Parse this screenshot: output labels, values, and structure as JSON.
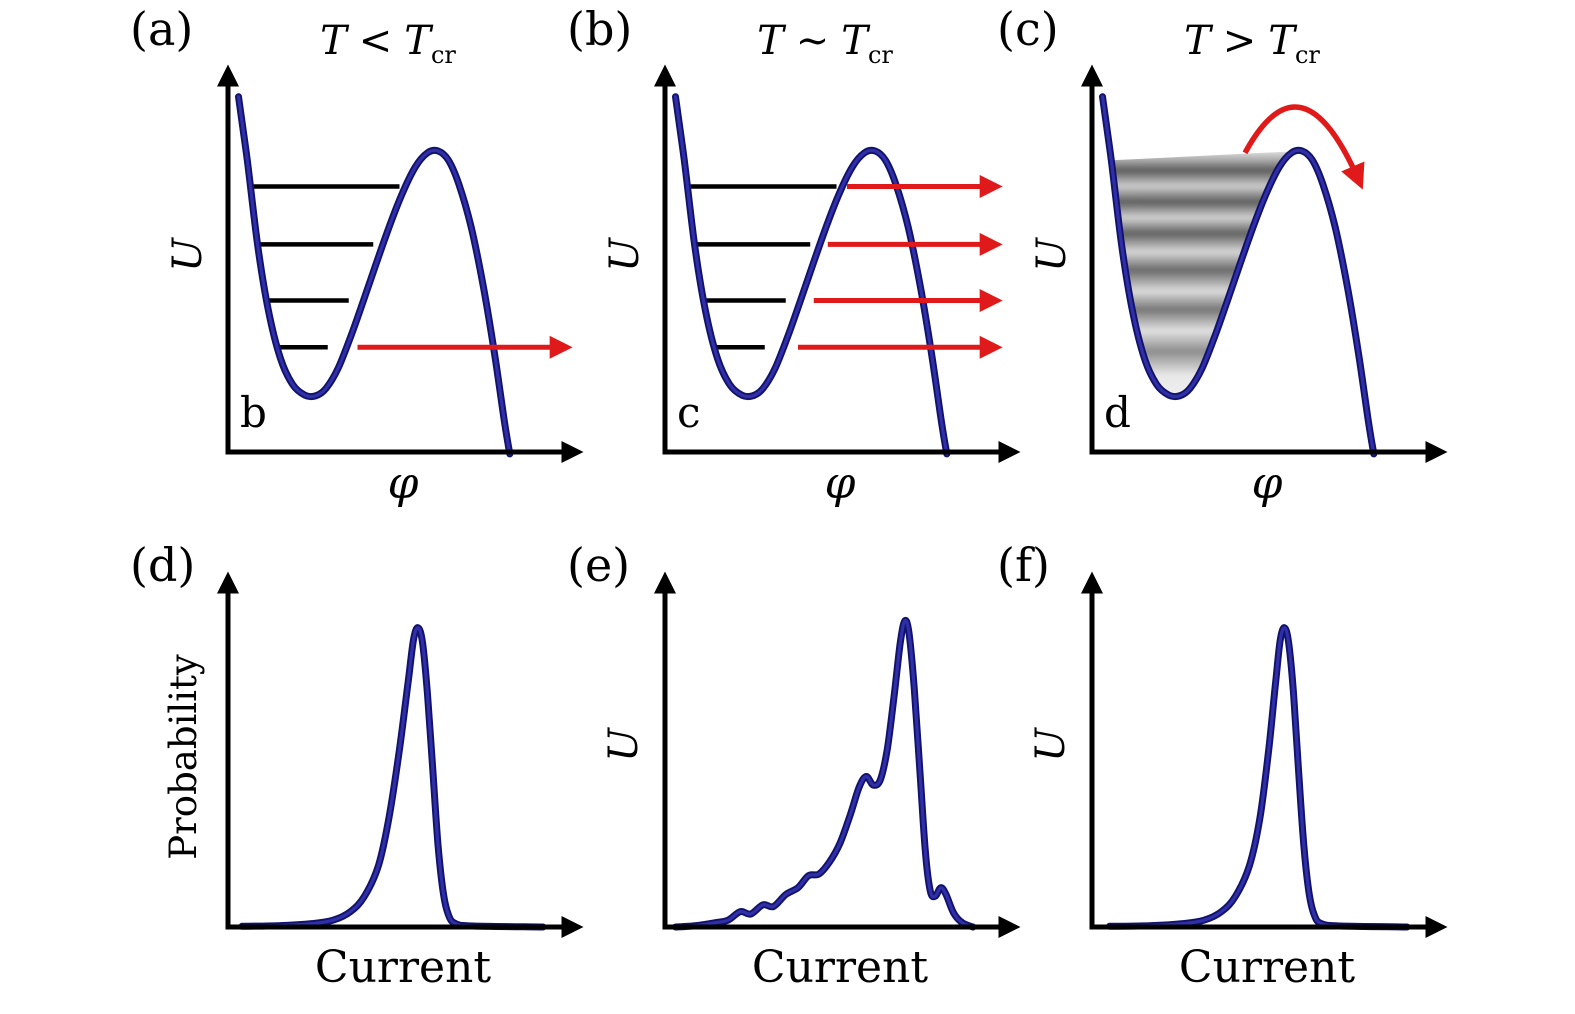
{
  "figure": {
    "background": "#ffffff",
    "axis_color": "#000000",
    "arrow_color": "#e01a1a",
    "curve_edge": "#12126b",
    "curve_core": "#2f2fa8"
  },
  "top_panels": [
    {
      "corner_label": "(a)",
      "title_lhs": "T",
      "title_op": "<",
      "title_rhs": "T",
      "title_sub": "cr",
      "ylabel": "U",
      "xlabel": "φ",
      "inner_letter": "b"
    },
    {
      "corner_label": "(b)",
      "title_lhs": "T",
      "title_op": "∼",
      "title_rhs": "T",
      "title_sub": "cr",
      "ylabel": "U",
      "xlabel": "φ",
      "inner_letter": "c"
    },
    {
      "corner_label": "(c)",
      "title_lhs": "T",
      "title_op": ">",
      "title_rhs": "T",
      "title_sub": "cr",
      "ylabel": "U",
      "xlabel": "φ",
      "inner_letter": "d"
    }
  ],
  "bottom_panels": [
    {
      "corner_label": "(d)",
      "ylabel": "Probability",
      "xlabel": "Current"
    },
    {
      "corner_label": "(e)",
      "ylabel": "U",
      "xlabel": "Current"
    },
    {
      "corner_label": "(f)",
      "ylabel": "U",
      "xlabel": "Current"
    }
  ],
  "chart_data": [
    {
      "id": "a",
      "type": "line",
      "panel": "(a)",
      "title": "T < T_cr",
      "xlabel": "φ",
      "ylabel": "U",
      "x_range": [
        0,
        1
      ],
      "y_range": [
        0,
        1
      ],
      "series": [
        {
          "name": "tilted-washboard-potential",
          "points": [
            [
              0.03,
              0.95
            ],
            [
              0.055,
              0.78
            ],
            [
              0.085,
              0.55
            ],
            [
              0.115,
              0.38
            ],
            [
              0.15,
              0.25
            ],
            [
              0.185,
              0.18
            ],
            [
              0.22,
              0.152
            ],
            [
              0.25,
              0.15
            ],
            [
              0.28,
              0.17
            ],
            [
              0.315,
              0.225
            ],
            [
              0.355,
              0.32
            ],
            [
              0.4,
              0.44
            ],
            [
              0.45,
              0.575
            ],
            [
              0.495,
              0.685
            ],
            [
              0.535,
              0.762
            ],
            [
              0.57,
              0.8
            ],
            [
              0.6,
              0.805
            ],
            [
              0.63,
              0.78
            ],
            [
              0.66,
              0.715
            ],
            [
              0.695,
              0.6
            ],
            [
              0.73,
              0.44
            ],
            [
              0.762,
              0.26
            ],
            [
              0.79,
              0.08
            ],
            [
              0.805,
              -0.005
            ]
          ]
        }
      ],
      "energy_levels": [
        {
          "y": 0.71,
          "x1": 0.065,
          "x2": 0.49
        },
        {
          "y": 0.555,
          "x1": 0.085,
          "x2": 0.415
        },
        {
          "y": 0.405,
          "x1": 0.105,
          "x2": 0.345
        },
        {
          "y": 0.28,
          "x1": 0.135,
          "x2": 0.285
        }
      ],
      "escape_arrows": [
        {
          "y": 0.28,
          "x1": 0.37,
          "x2": 0.965
        }
      ]
    },
    {
      "id": "b",
      "type": "line",
      "panel": "(b)",
      "title": "T ∼ T_cr",
      "xlabel": "φ",
      "ylabel": "U",
      "x_range": [
        0,
        1
      ],
      "y_range": [
        0,
        1
      ],
      "series": [
        {
          "name": "tilted-washboard-potential",
          "points": [
            [
              0.03,
              0.95
            ],
            [
              0.055,
              0.78
            ],
            [
              0.085,
              0.55
            ],
            [
              0.115,
              0.38
            ],
            [
              0.15,
              0.25
            ],
            [
              0.185,
              0.18
            ],
            [
              0.22,
              0.152
            ],
            [
              0.25,
              0.15
            ],
            [
              0.28,
              0.17
            ],
            [
              0.315,
              0.225
            ],
            [
              0.355,
              0.32
            ],
            [
              0.4,
              0.44
            ],
            [
              0.45,
              0.575
            ],
            [
              0.495,
              0.685
            ],
            [
              0.535,
              0.762
            ],
            [
              0.57,
              0.8
            ],
            [
              0.6,
              0.805
            ],
            [
              0.63,
              0.78
            ],
            [
              0.66,
              0.715
            ],
            [
              0.695,
              0.6
            ],
            [
              0.73,
              0.44
            ],
            [
              0.762,
              0.26
            ],
            [
              0.79,
              0.08
            ],
            [
              0.805,
              -0.005
            ]
          ]
        }
      ],
      "energy_levels": [
        {
          "y": 0.71,
          "x1": 0.065,
          "x2": 0.49
        },
        {
          "y": 0.555,
          "x1": 0.085,
          "x2": 0.415
        },
        {
          "y": 0.405,
          "x1": 0.105,
          "x2": 0.345
        },
        {
          "y": 0.28,
          "x1": 0.135,
          "x2": 0.285
        }
      ],
      "escape_arrows": [
        {
          "y": 0.71,
          "x1": 0.52,
          "x2": 0.945
        },
        {
          "y": 0.555,
          "x1": 0.465,
          "x2": 0.945
        },
        {
          "y": 0.405,
          "x1": 0.425,
          "x2": 0.945
        },
        {
          "y": 0.28,
          "x1": 0.38,
          "x2": 0.945
        }
      ]
    },
    {
      "id": "c",
      "type": "line",
      "panel": "(c)",
      "title": "T > T_cr",
      "xlabel": "φ",
      "ylabel": "U",
      "x_range": [
        0,
        1
      ],
      "y_range": [
        0,
        1
      ],
      "series": [
        {
          "name": "tilted-washboard-potential",
          "points": [
            [
              0.03,
              0.95
            ],
            [
              0.055,
              0.78
            ],
            [
              0.085,
              0.55
            ],
            [
              0.115,
              0.38
            ],
            [
              0.15,
              0.25
            ],
            [
              0.185,
              0.18
            ],
            [
              0.22,
              0.152
            ],
            [
              0.25,
              0.15
            ],
            [
              0.28,
              0.17
            ],
            [
              0.315,
              0.225
            ],
            [
              0.355,
              0.32
            ],
            [
              0.4,
              0.44
            ],
            [
              0.45,
              0.575
            ],
            [
              0.495,
              0.685
            ],
            [
              0.535,
              0.762
            ],
            [
              0.57,
              0.8
            ],
            [
              0.6,
              0.805
            ],
            [
              0.63,
              0.78
            ],
            [
              0.66,
              0.715
            ],
            [
              0.695,
              0.6
            ],
            [
              0.73,
              0.44
            ],
            [
              0.762,
              0.26
            ],
            [
              0.79,
              0.08
            ],
            [
              0.805,
              -0.005
            ]
          ]
        }
      ],
      "thermal_smear": {
        "y_top": 0.8,
        "y_bottom": 0.13
      },
      "over_barrier_arrow": {
        "x1": 0.437,
        "y1": 0.8,
        "cx": 0.6,
        "cy": 1.08,
        "x2": 0.765,
        "y2": 0.72
      }
    },
    {
      "id": "d",
      "type": "line",
      "panel": "(d)",
      "title": "",
      "xlabel": "Current",
      "ylabel": "Probability",
      "x_range": [
        0,
        1
      ],
      "y_range": [
        0,
        1
      ],
      "series": [
        {
          "name": "switching-current-distribution",
          "points": [
            [
              0.04,
              0.002
            ],
            [
              0.15,
              0.004
            ],
            [
              0.24,
              0.01
            ],
            [
              0.3,
              0.02
            ],
            [
              0.35,
              0.045
            ],
            [
              0.39,
              0.09
            ],
            [
              0.43,
              0.18
            ],
            [
              0.46,
              0.32
            ],
            [
              0.49,
              0.52
            ],
            [
              0.515,
              0.72
            ],
            [
              0.53,
              0.84
            ],
            [
              0.543,
              0.875
            ],
            [
              0.556,
              0.83
            ],
            [
              0.57,
              0.68
            ],
            [
              0.585,
              0.46
            ],
            [
              0.6,
              0.24
            ],
            [
              0.615,
              0.1
            ],
            [
              0.63,
              0.035
            ],
            [
              0.65,
              0.01
            ],
            [
              0.7,
              0.003
            ],
            [
              0.9,
              0.0
            ]
          ]
        }
      ]
    },
    {
      "id": "e",
      "type": "line",
      "panel": "(e)",
      "title": "",
      "xlabel": "Current",
      "ylabel": "U",
      "x_range": [
        0,
        1
      ],
      "y_range": [
        0,
        1
      ],
      "series": [
        {
          "name": "switching-current-distribution",
          "points": [
            [
              0.03,
              0.0
            ],
            [
              0.09,
              0.004
            ],
            [
              0.14,
              0.012
            ],
            [
              0.18,
              0.02
            ],
            [
              0.215,
              0.045
            ],
            [
              0.245,
              0.038
            ],
            [
              0.28,
              0.065
            ],
            [
              0.31,
              0.06
            ],
            [
              0.345,
              0.095
            ],
            [
              0.38,
              0.115
            ],
            [
              0.41,
              0.15
            ],
            [
              0.44,
              0.155
            ],
            [
              0.47,
              0.19
            ],
            [
              0.5,
              0.245
            ],
            [
              0.53,
              0.33
            ],
            [
              0.555,
              0.41
            ],
            [
              0.575,
              0.44
            ],
            [
              0.595,
              0.415
            ],
            [
              0.615,
              0.43
            ],
            [
              0.635,
              0.52
            ],
            [
              0.655,
              0.68
            ],
            [
              0.672,
              0.83
            ],
            [
              0.685,
              0.895
            ],
            [
              0.697,
              0.86
            ],
            [
              0.712,
              0.7
            ],
            [
              0.728,
              0.46
            ],
            [
              0.744,
              0.22
            ],
            [
              0.758,
              0.105
            ],
            [
              0.772,
              0.09
            ],
            [
              0.788,
              0.115
            ],
            [
              0.803,
              0.095
            ],
            [
              0.825,
              0.04
            ],
            [
              0.85,
              0.012
            ],
            [
              0.88,
              0.0
            ]
          ]
        }
      ]
    },
    {
      "id": "f",
      "type": "line",
      "panel": "(f)",
      "title": "",
      "xlabel": "Current",
      "ylabel": "U",
      "x_range": [
        0,
        1
      ],
      "y_range": [
        0,
        1
      ],
      "series": [
        {
          "name": "switching-current-distribution",
          "points": [
            [
              0.05,
              0.002
            ],
            [
              0.17,
              0.004
            ],
            [
              0.26,
              0.01
            ],
            [
              0.32,
              0.02
            ],
            [
              0.37,
              0.045
            ],
            [
              0.41,
              0.09
            ],
            [
              0.45,
              0.18
            ],
            [
              0.48,
              0.32
            ],
            [
              0.505,
              0.52
            ],
            [
              0.525,
              0.72
            ],
            [
              0.538,
              0.84
            ],
            [
              0.55,
              0.875
            ],
            [
              0.562,
              0.83
            ],
            [
              0.576,
              0.68
            ],
            [
              0.59,
              0.46
            ],
            [
              0.605,
              0.24
            ],
            [
              0.62,
              0.1
            ],
            [
              0.635,
              0.035
            ],
            [
              0.655,
              0.01
            ],
            [
              0.71,
              0.003
            ],
            [
              0.9,
              0.0
            ]
          ]
        }
      ]
    }
  ]
}
